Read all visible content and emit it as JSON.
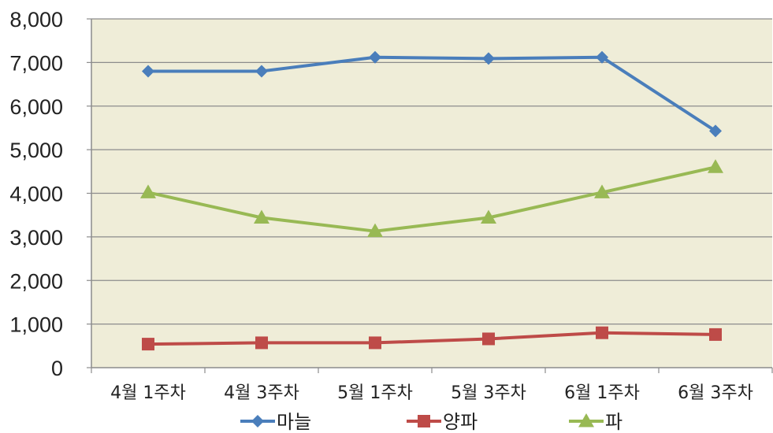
{
  "chart_data": {
    "type": "line",
    "title": "",
    "xlabel": "",
    "ylabel": "",
    "categories": [
      "4월 1주차",
      "4월 3주차",
      "5월 1주차",
      "5월 3주차",
      "6월 1주차",
      "6월 3주차"
    ],
    "ylim": [
      0,
      8000
    ],
    "yticks": [
      0,
      1000,
      2000,
      3000,
      4000,
      5000,
      6000,
      7000,
      8000
    ],
    "ytick_labels": [
      "0",
      "1,000",
      "2,000",
      "3,000",
      "4,000",
      "5,000",
      "6,000",
      "7,000",
      "8,000"
    ],
    "grid": true,
    "legend_position": "bottom",
    "plot_background": "#efedd8",
    "series": [
      {
        "name": "마늘",
        "marker": "diamond",
        "color": "#4a7ebb",
        "values": [
          6800,
          6800,
          7120,
          7090,
          7120,
          5430
        ]
      },
      {
        "name": "양파",
        "marker": "square",
        "color": "#be4b48",
        "values": [
          540,
          570,
          570,
          660,
          800,
          760
        ]
      },
      {
        "name": "파",
        "marker": "triangle",
        "color": "#98b954",
        "values": [
          4020,
          3440,
          3130,
          3440,
          4020,
          4600
        ]
      }
    ]
  }
}
